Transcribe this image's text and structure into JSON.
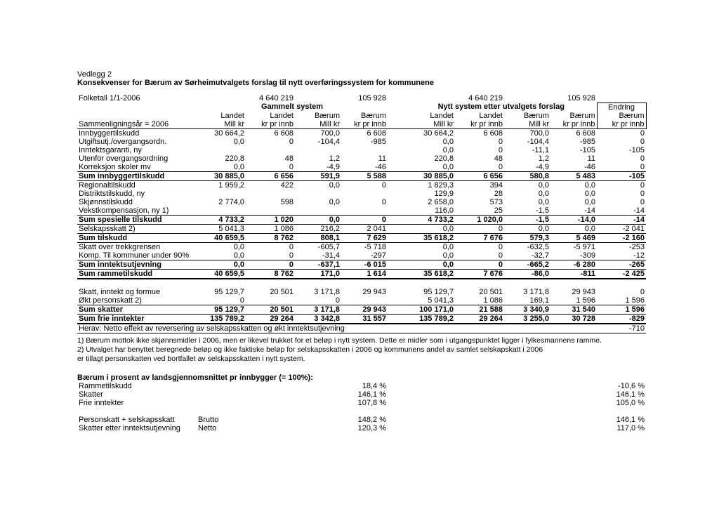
{
  "heading1": "Vedlegg 2",
  "heading2": "Konsekvenser for Bærum av Sørheimutvalgets forslag til nytt overføringssystem for kommunene",
  "folketall_label": "Folketall 1/1-2006",
  "folketall": {
    "a": "4 640 219",
    "b": "105 928",
    "c": "4 640 219",
    "d": "105 928"
  },
  "group_old": "Gammelt system",
  "group_new": "Nytt system etter utvalgets forslag",
  "group_end": "Endring",
  "colA": {
    "top": "",
    "mid": "Landet",
    "bot": "Mill kr"
  },
  "colB": {
    "top": "",
    "mid": "Landet",
    "bot": "kr pr innb"
  },
  "colC": {
    "top": "",
    "mid": "Bærum",
    "bot": "Mill kr"
  },
  "colD": {
    "top": "",
    "mid": "Bærum",
    "bot": "kr pr innb"
  },
  "colE": {
    "top": "",
    "mid": "Landet",
    "bot": "Mill kr"
  },
  "colF": {
    "top": "",
    "mid": "Landet",
    "bot": "kr pr innb"
  },
  "colG": {
    "top": "",
    "mid": "Bærum",
    "bot": "Mill kr"
  },
  "colH": {
    "top": "",
    "mid": "Bærum",
    "bot": "kr pr innb"
  },
  "colI": {
    "top": "",
    "mid": "Bærum",
    "bot": "kr pr innb"
  },
  "row_label_sammen": "Sammenligningsår = 2006",
  "rows": [
    {
      "lbl": "Innbyggertilskudd",
      "a": "30 664,2",
      "b": "6 608",
      "c": "700,0",
      "d": "6 608",
      "e": "30 664,2",
      "f": "6 608",
      "g": "700,0",
      "h": "6 608",
      "i": "0"
    },
    {
      "lbl": "Utgiftsutj./overgangsordn.",
      "a": "0,0",
      "b": "0",
      "c": "-104,4",
      "d": "-985",
      "e": "0,0",
      "f": "0",
      "g": "-104,4",
      "h": "-985",
      "i": "0"
    },
    {
      "lbl": "Inntektsgaranti, ny",
      "a": "",
      "b": "",
      "c": "",
      "d": "",
      "e": "0,0",
      "f": "0",
      "g": "-11,1",
      "h": "-105",
      "i": "-105"
    },
    {
      "lbl": "Utenfor overgangsordning",
      "a": "220,8",
      "b": "48",
      "c": "1,2",
      "d": "11",
      "e": "220,8",
      "f": "48",
      "g": "1,2",
      "h": "11",
      "i": "0"
    },
    {
      "lbl": "Korreksjon skoler mv",
      "a": "0,0",
      "b": "0",
      "c": "-4,9",
      "d": "-46",
      "e": "0,0",
      "f": "0",
      "g": "-4,9",
      "h": "-46",
      "i": "0",
      "u": true
    },
    {
      "lbl": "Sum innbyggertilskudd",
      "a": "30 885,0",
      "b": "6 656",
      "c": "591,9",
      "d": "5 588",
      "e": "30 885,0",
      "f": "6 656",
      "g": "580,8",
      "h": "5 483",
      "i": "-105",
      "bold": true,
      "bb": true
    },
    {
      "lbl": "Regionaltilskudd",
      "a": "1 959,2",
      "b": "422",
      "c": "0,0",
      "d": "0",
      "e": "1 829,3",
      "f": "394",
      "g": "0,0",
      "h": "0,0",
      "i": "0"
    },
    {
      "lbl": "Distriktstilskudd, ny",
      "a": "",
      "b": "",
      "c": "",
      "d": "",
      "e": "129,9",
      "f": "28",
      "g": "0,0",
      "h": "0,0",
      "i": "0"
    },
    {
      "lbl": "Skjønnstilskudd",
      "a": "2 774,0",
      "b": "598",
      "c": "0,0",
      "d": "0",
      "e": "2 658,0",
      "f": "573",
      "g": "0,0",
      "h": "0,0",
      "i": "0"
    },
    {
      "lbl": "Vekstkompensasjon, ny 1)",
      "a": "",
      "b": "",
      "c": "",
      "d": "",
      "e": "116,0",
      "f": "25",
      "g": "-1,5",
      "h": "-14",
      "i": "-14",
      "u": true
    },
    {
      "lbl": "Sum spesielle tilskudd",
      "a": "4 733,2",
      "b": "1 020",
      "c": "0,0",
      "d": "0",
      "e": "4 733,2",
      "f": "1 020,0",
      "g": "-1,5",
      "h": "-14,0",
      "i": "-14",
      "bold": true,
      "bb": true
    },
    {
      "lbl": "Selskapsskatt 2)",
      "a": "5 041,3",
      "b": "1 086",
      "c": "216,2",
      "d": "2 041",
      "e": "0,0",
      "f": "0",
      "g": "0,0",
      "h": "0,0",
      "i": "-2 041",
      "u": true
    },
    {
      "lbl": "Sum tilskudd",
      "a": "40 659,5",
      "b": "8 762",
      "c": "808,1",
      "d": "7 629",
      "e": "35 618,2",
      "f": "7 676",
      "g": "579,3",
      "h": "5 469",
      "i": "-2 160",
      "bold": true,
      "bb": true
    },
    {
      "lbl": "Skatt over trekkgrensen",
      "a": "0,0",
      "b": "0",
      "c": "-605,7",
      "d": "-5 718",
      "e": "0,0",
      "f": "0",
      "g": "-632,5",
      "h": "-5 971",
      "i": "-253"
    },
    {
      "lbl": "Komp. Til kommuner under 90%",
      "a": "0,0",
      "b": "0",
      "c": "-31,4",
      "d": "-297",
      "e": "0,0",
      "f": "0",
      "g": "-32,7",
      "h": "-309",
      "i": "-12",
      "u": true
    },
    {
      "lbl": "Sum inntektsutjevning",
      "a": "0,0",
      "b": "0",
      "c": "-637,1",
      "d": "-6 015",
      "e": "0,0",
      "f": "0",
      "g": "-665,2",
      "h": "-6 280",
      "i": "-265",
      "bold": true,
      "bb": true
    },
    {
      "lbl": "Sum rammetilskudd",
      "a": "40 659,5",
      "b": "8 762",
      "c": "171,0",
      "d": "1 614",
      "e": "35 618,2",
      "f": "7 676",
      "g": "-86,0",
      "h": "-811",
      "i": "-2 425",
      "bold": true,
      "bb2": true
    },
    {
      "lbl": "",
      "a": "",
      "b": "",
      "c": "",
      "d": "",
      "e": "",
      "f": "",
      "g": "",
      "h": "",
      "i": "",
      "blank": true
    },
    {
      "lbl": "Skatt, inntekt og formue",
      "a": "95 129,7",
      "b": "20 501",
      "c": "3 171,8",
      "d": "29 943",
      "e": "95 129,7",
      "f": "20 501",
      "g": "3 171,8",
      "h": "29 943",
      "i": "0"
    },
    {
      "lbl": "Økt personskatt 2)",
      "a": "0",
      "b": "",
      "c": "0",
      "d": "",
      "e": "5 041,3",
      "f": "1 086",
      "g": "169,1",
      "h": "1 596",
      "i": "1 596",
      "u": true
    },
    {
      "lbl": "Sum skatter",
      "a": "95 129,7",
      "b": "20 501",
      "c": "3 171,8",
      "d": "29 943",
      "e": "100 171,0",
      "f": "21 588",
      "g": "3 340,9",
      "h": "31 540",
      "i": "1 596",
      "bold": true,
      "bb": true
    },
    {
      "lbl": "Sum frie inntekter",
      "a": "135 789,2",
      "b": "29 264",
      "c": "3 342,8",
      "d": "31 557",
      "e": "135 789,2",
      "f": "29 264",
      "g": "3 255,0",
      "h": "30 728",
      "i": "-829",
      "bold": true,
      "bb2": true
    }
  ],
  "herav_label": "Herav: Netto effekt av reversering av selskapsskatten og økt inntektsutjevning",
  "herav_val": "-710",
  "notes": [
    "1) Bærum mottok ikke skjønnsmidler i 2006, men er likevel trukket for et beløp i nytt system. Dette er midler som i utgangspunktet ligger i fylkesmannens ramme.",
    "2) Utvalget har benyttet beregnede beløp og ikke faktiske beløp for selskapsskatten i 2006 og kommunens andel av samlet selskapskatt i 2006",
    "    er tillagt personskatten ved bortfallet av selskapsskatten i nytt system."
  ],
  "pct_title": "Bærum i prosent av landsgjennomsnittet pr innbygger (= 100%):",
  "pct_rows": [
    {
      "lbl": "Rammetilskudd",
      "sub": "",
      "v1": "18,4 %",
      "v2": "-10,6 %"
    },
    {
      "lbl": "Skatter",
      "sub": "",
      "v1": "146,1 %",
      "v2": "146,1 %"
    },
    {
      "lbl": "Frie inntekter",
      "sub": "",
      "v1": "107,8 %",
      "v2": "105,0 %"
    },
    {
      "lbl": "",
      "sub": "",
      "v1": "",
      "v2": ""
    },
    {
      "lbl": "Personskatt + selskapsskatt",
      "sub": "Brutto",
      "v1": "148,2 %",
      "v2": "146,1 %"
    },
    {
      "lbl": "Skatter etter inntektsutjevning",
      "sub": "Netto",
      "v1": "120,3 %",
      "v2": "117,0 %"
    }
  ]
}
